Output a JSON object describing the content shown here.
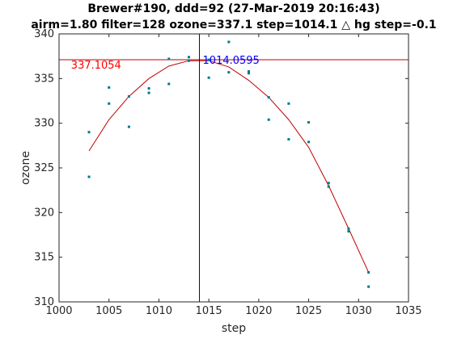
{
  "chart_data": {
    "type": "scatter",
    "title_lines": [
      "Brewer#190, ddd=92 (27-Mar-2019 20:16:43)",
      "airm=1.80  filter=128 ozone=337.1  step=1014.1 △ hg step=-0.1"
    ],
    "xlabel": "step",
    "ylabel": "ozone",
    "xlim": [
      1000,
      1035
    ],
    "ylim": [
      310,
      340
    ],
    "xticks": [
      1000,
      1005,
      1010,
      1015,
      1020,
      1025,
      1030,
      1035
    ],
    "yticks": [
      310,
      315,
      320,
      325,
      330,
      335,
      340
    ],
    "grid": false,
    "points": [
      {
        "x": 1003,
        "y": 329.0
      },
      {
        "x": 1003,
        "y": 324.0
      },
      {
        "x": 1005,
        "y": 334.0
      },
      {
        "x": 1005,
        "y": 332.2
      },
      {
        "x": 1007,
        "y": 333.0
      },
      {
        "x": 1007,
        "y": 329.6
      },
      {
        "x": 1009,
        "y": 333.9
      },
      {
        "x": 1009,
        "y": 333.4
      },
      {
        "x": 1011,
        "y": 337.2
      },
      {
        "x": 1011,
        "y": 334.4
      },
      {
        "x": 1013,
        "y": 337.4
      },
      {
        "x": 1013,
        "y": 337.0
      },
      {
        "x": 1015,
        "y": 337.1
      },
      {
        "x": 1015,
        "y": 335.1
      },
      {
        "x": 1017,
        "y": 339.1
      },
      {
        "x": 1017,
        "y": 335.7
      },
      {
        "x": 1019,
        "y": 335.8
      },
      {
        "x": 1019,
        "y": 335.6
      },
      {
        "x": 1021,
        "y": 332.9
      },
      {
        "x": 1021,
        "y": 330.4
      },
      {
        "x": 1023,
        "y": 332.2
      },
      {
        "x": 1023,
        "y": 328.2
      },
      {
        "x": 1025,
        "y": 330.1
      },
      {
        "x": 1025,
        "y": 327.9
      },
      {
        "x": 1027,
        "y": 323.3
      },
      {
        "x": 1027,
        "y": 322.9
      },
      {
        "x": 1029,
        "y": 318.2
      },
      {
        "x": 1029,
        "y": 317.9
      },
      {
        "x": 1031,
        "y": 313.3
      },
      {
        "x": 1031,
        "y": 311.7
      }
    ],
    "fit_curve": [
      {
        "x": 1003,
        "y": 326.9
      },
      {
        "x": 1005,
        "y": 330.4
      },
      {
        "x": 1007,
        "y": 333.0
      },
      {
        "x": 1009,
        "y": 335.0
      },
      {
        "x": 1011,
        "y": 336.4
      },
      {
        "x": 1013,
        "y": 337.0
      },
      {
        "x": 1015,
        "y": 337.0
      },
      {
        "x": 1017,
        "y": 336.3
      },
      {
        "x": 1019,
        "y": 334.8
      },
      {
        "x": 1021,
        "y": 332.9
      },
      {
        "x": 1023,
        "y": 330.4
      },
      {
        "x": 1025,
        "y": 327.3
      },
      {
        "x": 1027,
        "y": 323.0
      },
      {
        "x": 1029,
        "y": 318.2
      },
      {
        "x": 1031,
        "y": 313.3
      }
    ],
    "max_ozone": 337.1054,
    "max_ozone_label": "337.1054",
    "max_step": 1014.0595,
    "max_step_label": "1014.0595",
    "colors": {
      "points": "#00798a",
      "fit": "#c00000",
      "hline": "#c00000",
      "vline": "#000080",
      "ozone_label": "#ff0000",
      "step_label": "#0000ff"
    }
  }
}
